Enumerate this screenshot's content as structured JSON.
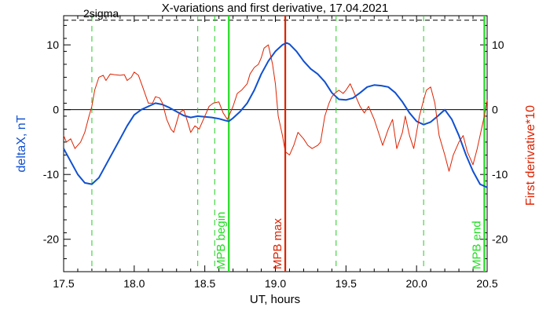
{
  "chart_data": {
    "type": "line",
    "title": "X-variations and first derivative, 17.04.2021",
    "xlabel": "UT, hours",
    "ylabel_left": "deltaX, nT",
    "ylabel_right": "First derivative*10",
    "xlim": [
      17.5,
      20.5
    ],
    "ylim": [
      -25,
      14.5
    ],
    "x_ticks": [
      17.5,
      18.0,
      18.5,
      19.0,
      19.5,
      20.0,
      20.5
    ],
    "x_tick_labels": [
      "17.5",
      "18.0",
      "18.5",
      "19.0",
      "19.5",
      "20.0",
      "20.5"
    ],
    "y_ticks": [
      10,
      0,
      -10,
      -20
    ],
    "y_tick_labels": [
      "10",
      "0",
      "-10",
      "-20"
    ],
    "grid": false,
    "threshold": {
      "label": "2sigma",
      "value": 13.8,
      "style": "dashed",
      "color": "#000000"
    },
    "zero_line": {
      "value": 0,
      "color": "#000000"
    },
    "vertical_markers": [
      {
        "x": 17.7,
        "style": "dashed",
        "color": "#22cc22",
        "label": ""
      },
      {
        "x": 18.45,
        "style": "dashed",
        "color": "#22cc22",
        "label": ""
      },
      {
        "x": 18.57,
        "style": "dashed",
        "color": "#22cc22",
        "label": ""
      },
      {
        "x": 18.67,
        "style": "solid",
        "color": "#22dd22",
        "label": "MPB begin"
      },
      {
        "x": 19.07,
        "style": "solid",
        "color": "#dd2200",
        "label": "MPB max"
      },
      {
        "x": 19.43,
        "style": "dashed",
        "color": "#22cc22",
        "label": ""
      },
      {
        "x": 20.05,
        "style": "dashed",
        "color": "#22cc22",
        "label": ""
      },
      {
        "x": 20.48,
        "style": "solid",
        "color": "#22dd22",
        "label": "MPB end"
      }
    ],
    "series": [
      {
        "color": "#1050d0",
        "axis": "left",
        "x": [
          17.5,
          17.55,
          17.6,
          17.65,
          17.7,
          17.75,
          17.8,
          17.85,
          17.9,
          17.95,
          18.0,
          18.05,
          18.1,
          18.15,
          18.2,
          18.25,
          18.3,
          18.35,
          18.4,
          18.45,
          18.5,
          18.55,
          18.6,
          18.65,
          18.67,
          18.7,
          18.75,
          18.8,
          18.85,
          18.9,
          18.95,
          19.0,
          19.05,
          19.08,
          19.1,
          19.15,
          19.2,
          19.25,
          19.3,
          19.35,
          19.4,
          19.45,
          19.5,
          19.55,
          19.6,
          19.65,
          19.7,
          19.75,
          19.8,
          19.85,
          19.9,
          19.95,
          20.0,
          20.05,
          20.1,
          20.15,
          20.2,
          20.25,
          20.3,
          20.35,
          20.4,
          20.45,
          20.5
        ],
        "values": [
          -6.0,
          -8.0,
          -10.0,
          -11.3,
          -11.5,
          -10.5,
          -8.5,
          -6.5,
          -4.5,
          -2.5,
          -0.8,
          0.0,
          0.5,
          1.0,
          0.8,
          0.3,
          -0.3,
          -0.9,
          -1.2,
          -1.0,
          -1.1,
          -1.2,
          -1.4,
          -1.7,
          -1.8,
          -1.3,
          -0.3,
          1.0,
          3.0,
          5.5,
          7.5,
          9.0,
          10.0,
          10.3,
          10.1,
          9.0,
          7.5,
          6.3,
          5.5,
          4.3,
          2.6,
          1.6,
          1.5,
          1.8,
          2.6,
          3.5,
          3.8,
          3.7,
          3.5,
          2.6,
          1.2,
          -0.5,
          -1.8,
          -2.3,
          -1.9,
          -1.0,
          0.0,
          -1.5,
          -4.0,
          -7.0,
          -9.5,
          -11.5,
          -12.0
        ]
      },
      {
        "color": "#dd2200",
        "axis": "right",
        "x": [
          17.5,
          17.52,
          17.55,
          17.58,
          17.62,
          17.65,
          17.68,
          17.7,
          17.72,
          17.75,
          17.78,
          17.8,
          17.83,
          17.86,
          17.9,
          17.93,
          17.95,
          17.98,
          18.0,
          18.03,
          18.06,
          18.1,
          18.13,
          18.15,
          18.18,
          18.2,
          18.23,
          18.26,
          18.28,
          18.3,
          18.32,
          18.35,
          18.38,
          18.4,
          18.43,
          18.46,
          18.5,
          18.53,
          18.56,
          18.6,
          18.63,
          18.66,
          18.7,
          18.73,
          18.76,
          18.8,
          18.82,
          18.85,
          18.88,
          18.9,
          18.92,
          18.95,
          18.98,
          19.0,
          19.02,
          19.05,
          19.07,
          19.1,
          19.13,
          19.16,
          19.2,
          19.23,
          19.26,
          19.3,
          19.32,
          19.35,
          19.38,
          19.4,
          19.42,
          19.45,
          19.48,
          19.5,
          19.53,
          19.56,
          19.6,
          19.63,
          19.66,
          19.7,
          19.73,
          19.76,
          19.8,
          19.83,
          19.86,
          19.9,
          19.92,
          19.95,
          19.98,
          20.0,
          20.02,
          20.05,
          20.07,
          20.1,
          20.13,
          20.16,
          20.2,
          20.23,
          20.26,
          20.3,
          20.33,
          20.36,
          20.4,
          20.43,
          20.46,
          20.48,
          20.5
        ],
        "values": [
          -4.0,
          -5.0,
          -4.5,
          -6.0,
          -5.0,
          -3.5,
          -1.0,
          0.5,
          3.0,
          5.0,
          5.3,
          4.5,
          5.5,
          5.4,
          5.3,
          5.4,
          4.5,
          5.0,
          5.8,
          5.3,
          3.5,
          1.0,
          1.0,
          2.0,
          1.8,
          1.0,
          -1.5,
          -3.0,
          -3.5,
          -2.0,
          -0.5,
          0.0,
          -2.0,
          -3.5,
          -2.5,
          -3.0,
          -1.0,
          0.5,
          1.0,
          1.2,
          -0.5,
          -1.5,
          0.5,
          2.5,
          3.0,
          4.0,
          5.5,
          6.5,
          7.0,
          8.0,
          9.5,
          10.0,
          7.0,
          4.0,
          -1.0,
          -4.0,
          -6.5,
          -7.0,
          -5.5,
          -3.5,
          -4.5,
          -5.5,
          -6.0,
          -5.5,
          -5.0,
          -1.0,
          1.0,
          2.0,
          2.5,
          3.0,
          2.5,
          3.0,
          4.0,
          2.5,
          0.5,
          -0.5,
          0.5,
          -1.5,
          -3.5,
          -5.5,
          -3.0,
          -1.5,
          -6.0,
          -3.5,
          -1.0,
          -4.0,
          -6.0,
          -3.5,
          -1.0,
          1.5,
          3.0,
          3.5,
          1.0,
          -4.0,
          -7.0,
          -9.5,
          -7.0,
          -5.0,
          -4.0,
          -6.5,
          -8.5,
          -6.0,
          -3.0,
          -1.0,
          1.5
        ]
      }
    ]
  }
}
